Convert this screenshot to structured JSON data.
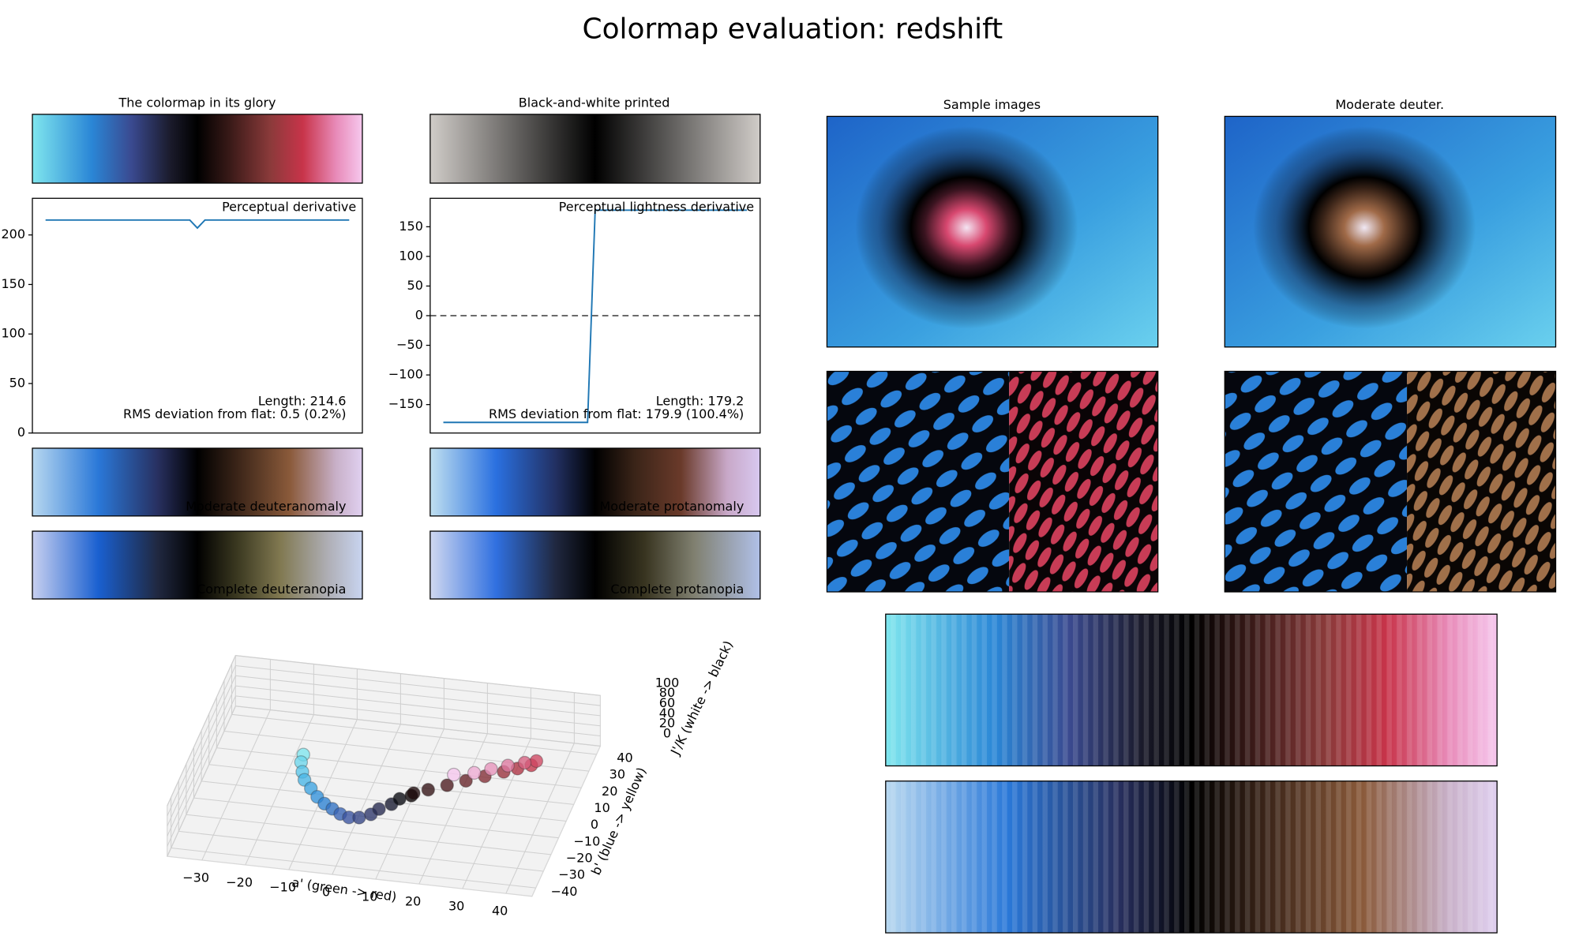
{
  "title": "Colormap evaluation: redshift",
  "panels": {
    "glory": "The colormap in its glory",
    "bw": "Black-and-white printed",
    "samples": "Sample images",
    "deuter": "Moderate deuter.",
    "deuteranomaly": "Moderate deuteranomaly",
    "deuteranopia": "Complete deuteranopia",
    "protanomaly": "Moderate protanomaly",
    "protanopia": "Complete protanopia"
  },
  "chart_data": [
    {
      "type": "line",
      "title": "Perceptual derivative",
      "annotations": [
        "Length: 214.6",
        "RMS deviation from flat: 0.5 (0.2%)"
      ],
      "color": "#1f77b4",
      "values": [
        215,
        215,
        215,
        215,
        215,
        215,
        215,
        215,
        215,
        215,
        215,
        215,
        215,
        215,
        215,
        215,
        215,
        215,
        215,
        215,
        207,
        215,
        215,
        215,
        215,
        215,
        215,
        215,
        215,
        215,
        215,
        215,
        215,
        215,
        215,
        215,
        215,
        215,
        215,
        215,
        215
      ],
      "ylim": [
        0,
        237
      ],
      "yticks": [
        0,
        50,
        100,
        150,
        200
      ]
    },
    {
      "type": "line",
      "title": "Perceptual lightness derivative",
      "annotations": [
        "Length: 179.2",
        "RMS deviation from flat: 179.9 (100.4%)"
      ],
      "color": "#1f77b4",
      "reference_line": 0,
      "values": [
        -180,
        -180,
        -180,
        -180,
        -180,
        -180,
        -180,
        -180,
        -180,
        -180,
        -180,
        -180,
        -180,
        -180,
        -180,
        -180,
        -180,
        -180,
        -180,
        -180,
        178,
        178,
        178,
        178,
        178,
        178,
        178,
        178,
        178,
        178,
        178,
        178,
        178,
        178,
        178,
        178,
        178,
        178,
        178,
        178,
        178
      ],
      "ylim": [
        -198,
        198
      ],
      "yticks": [
        {
          "value": -150,
          "label": "−150"
        },
        {
          "value": -100,
          "label": "−100"
        },
        {
          "value": -50,
          "label": "−50"
        },
        0,
        50,
        100,
        150
      ]
    },
    {
      "type": "scatter3d",
      "xlabel": "a' (green -> red)",
      "ylabel": "b' (blue -> yellow)",
      "zlabel": "J'/K (white -> black)",
      "colormap": [
        "#7fe6ee",
        "#4ab8e8",
        "#2a84d6",
        "#3a56a8",
        "#2a2e5a",
        "#000000",
        "#3a1416",
        "#8a2e36",
        "#c8344a",
        "#e07ca4",
        "#f6c6ee"
      ],
      "x": [
        -14,
        -14,
        -13,
        -12,
        -10,
        -8,
        -6,
        -4,
        -2,
        0,
        2,
        4,
        5,
        7,
        8,
        10,
        10,
        13,
        17,
        21,
        25,
        29,
        32,
        35,
        36,
        34,
        31,
        28,
        25,
        21
      ],
      "y": [
        -3,
        -6,
        -10,
        -13,
        -16,
        -19,
        -21,
        -22,
        -23,
        -23,
        -21,
        -17,
        -12,
        -7,
        -2,
        2,
        5,
        7,
        9,
        11,
        13,
        15,
        16,
        17,
        18,
        14,
        9,
        4,
        -1,
        -5
      ],
      "z": [
        85,
        80,
        75,
        70,
        65,
        60,
        55,
        50,
        45,
        40,
        35,
        30,
        25,
        20,
        15,
        10,
        5,
        8,
        14,
        20,
        26,
        32,
        38,
        44,
        50,
        58,
        66,
        73,
        79,
        85
      ],
      "xlim": [
        -38,
        46
      ],
      "ylim": [
        -45,
        45
      ],
      "zlim": [
        0,
        100
      ],
      "xticks": [
        {
          "value": -30,
          "label": "−30"
        },
        {
          "value": -20,
          "label": "−20"
        },
        {
          "value": -10,
          "label": "−10"
        },
        0,
        10,
        20,
        30,
        40
      ],
      "yticks": [
        {
          "value": -40,
          "label": "−40"
        },
        {
          "value": -30,
          "label": "−30"
        },
        {
          "value": -20,
          "label": "−20"
        },
        {
          "value": -10,
          "label": "−10"
        },
        0,
        10,
        20,
        30,
        40
      ],
      "zticks": [
        0,
        20,
        40,
        60,
        80,
        100
      ]
    }
  ]
}
